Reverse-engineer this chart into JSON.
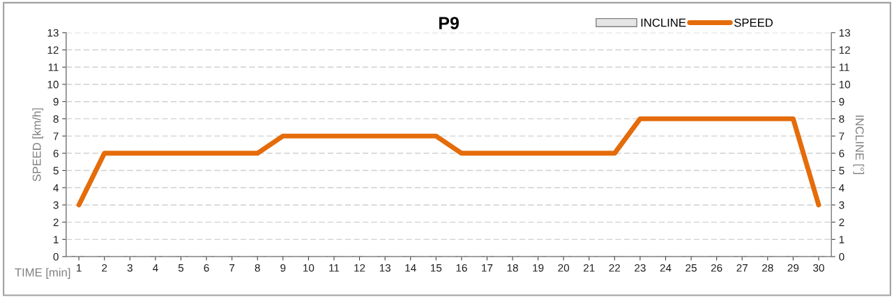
{
  "chart_data": {
    "type": "line",
    "title": "P9",
    "xlabel": "TIME [min]",
    "ylabel": "SPEED [km/h]",
    "y2label": "INCLINE [°]",
    "categories": [
      "1",
      "2",
      "3",
      "4",
      "5",
      "6",
      "7",
      "8",
      "9",
      "10",
      "11",
      "12",
      "13",
      "14",
      "15",
      "16",
      "17",
      "18",
      "19",
      "20",
      "21",
      "22",
      "23",
      "24",
      "25",
      "26",
      "27",
      "28",
      "29",
      "30"
    ],
    "series": [
      {
        "name": "INCLINE",
        "type": "bar",
        "axis": "y2",
        "color": "#e6e6e6",
        "values": [
          0,
          0,
          0,
          0,
          0,
          0,
          0,
          0,
          0,
          0,
          0,
          0,
          0,
          0,
          0,
          0,
          0,
          0,
          0,
          0,
          0,
          0,
          0,
          0,
          0,
          0,
          0,
          0,
          0,
          0
        ]
      },
      {
        "name": "SPEED",
        "color": "#e46c0a",
        "values": [
          3,
          6,
          6,
          6,
          6,
          6,
          6,
          6,
          7,
          7,
          7,
          7,
          7,
          7,
          7,
          6,
          6,
          6,
          6,
          6,
          6,
          6,
          8,
          8,
          8,
          8,
          8,
          8,
          8,
          3
        ]
      }
    ],
    "ylim": [
      0,
      13
    ],
    "yticks": [
      0,
      1,
      2,
      3,
      4,
      5,
      6,
      7,
      8,
      9,
      10,
      11,
      12,
      13
    ],
    "y2lim": [
      0,
      13
    ],
    "y2ticks": [
      0,
      1,
      2,
      3,
      4,
      5,
      6,
      7,
      8,
      9,
      10,
      11,
      12,
      13
    ],
    "grid": "y",
    "legend": "top right",
    "marker": "none",
    "line_style": "solid"
  }
}
